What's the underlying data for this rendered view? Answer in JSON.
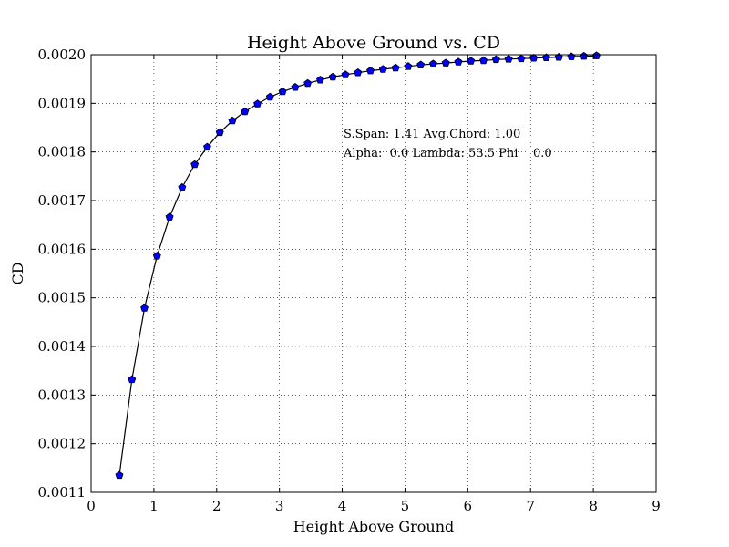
{
  "chart_data": {
    "type": "line",
    "title": "Height Above Ground vs. CD",
    "xlabel": "Height Above Ground",
    "ylabel": "CD",
    "xlim": [
      0,
      9
    ],
    "ylim": [
      0.0011,
      0.002
    ],
    "xticks": [
      0,
      1,
      2,
      3,
      4,
      5,
      6,
      7,
      8,
      9
    ],
    "xtick_labels": [
      "0",
      "1",
      "2",
      "3",
      "4",
      "5",
      "6",
      "7",
      "8",
      "9"
    ],
    "yticks": [
      0.0011,
      0.0012,
      0.0013,
      0.0014,
      0.0015,
      0.0016,
      0.0017,
      0.0018,
      0.0019,
      0.002
    ],
    "ytick_labels": [
      "0.0011",
      "0.0012",
      "0.0013",
      "0.0014",
      "0.0015",
      "0.0016",
      "0.0017",
      "0.0018",
      "0.0019",
      "0.0020"
    ],
    "grid": true,
    "annotations": [
      "S.Span: 1.41 Avg.Chord: 1.00",
      "Alpha:  0.0 Lambda: 53.5 Phi    0.0"
    ],
    "series": [
      {
        "color": "#0000ff",
        "line_color": "#000000",
        "marker": "pentagon",
        "x": [
          0.45,
          0.65,
          0.85,
          1.05,
          1.25,
          1.45,
          1.65,
          1.85,
          2.05,
          2.25,
          2.45,
          2.65,
          2.85,
          3.05,
          3.25,
          3.45,
          3.65,
          3.85,
          4.05,
          4.25,
          4.45,
          4.65,
          4.85,
          5.05,
          5.25,
          5.45,
          5.65,
          5.85,
          6.05,
          6.25,
          6.45,
          6.65,
          6.85,
          7.05,
          7.25,
          7.45,
          7.65,
          7.85,
          8.05
        ],
        "y": [
          0.001135,
          0.001332,
          0.001479,
          0.001586,
          0.001666,
          0.001727,
          0.001774,
          0.00181,
          0.00184,
          0.001864,
          0.001883,
          0.001899,
          0.001913,
          0.001924,
          0.001933,
          0.001941,
          0.001948,
          0.001954,
          0.001959,
          0.001963,
          0.001967,
          0.00197,
          0.001973,
          0.001976,
          0.001979,
          0.001981,
          0.001983,
          0.001985,
          0.001987,
          0.001988,
          0.00199,
          0.001991,
          0.001992,
          0.001993,
          0.001994,
          0.001995,
          0.001996,
          0.001997,
          0.001998
        ]
      }
    ]
  }
}
